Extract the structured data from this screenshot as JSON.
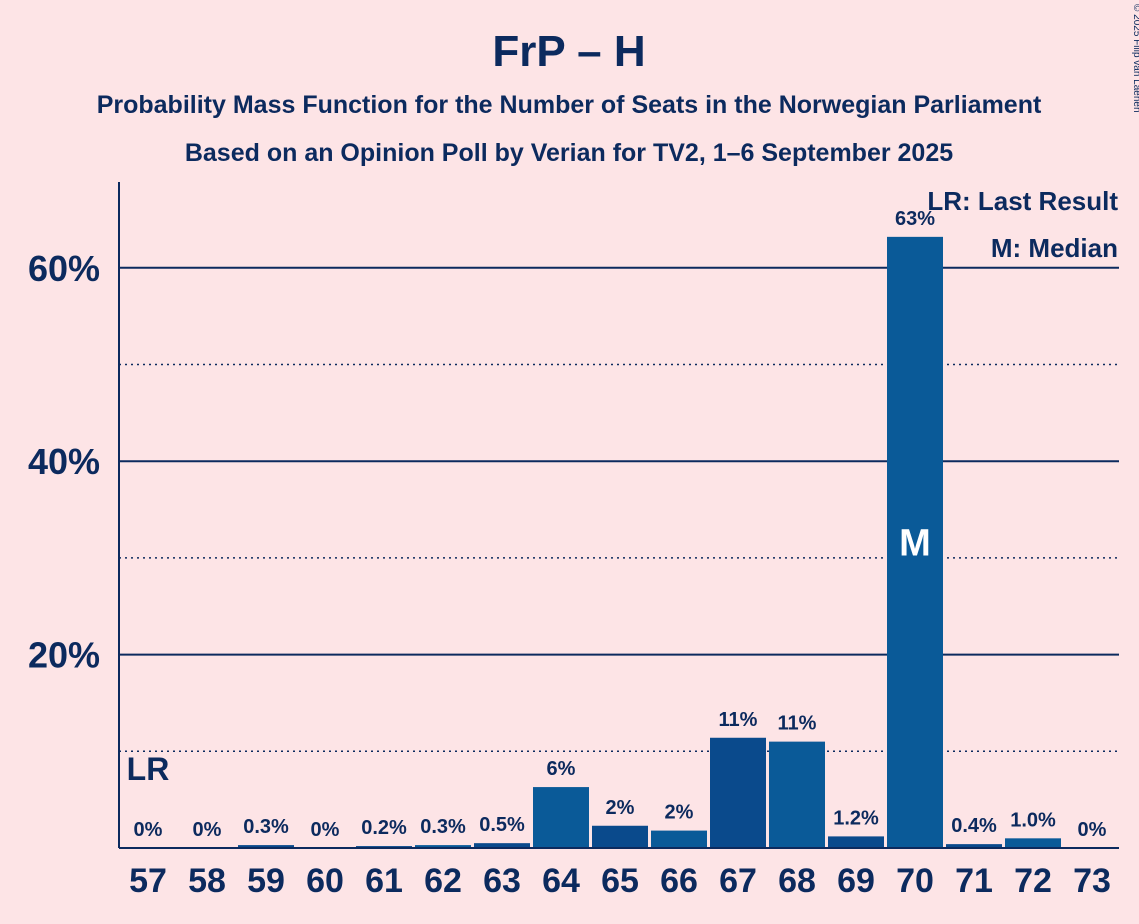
{
  "copyright": "© 2025 Filip van Laenen",
  "chart_data": {
    "type": "bar",
    "title": "FrP – H",
    "subtitle1": "Probability Mass Function for the Number of Seats in the Norwegian Parliament",
    "subtitle2": "Based on an Opinion Poll by Verian for TV2, 1–6 September 2025",
    "categories": [
      "57",
      "58",
      "59",
      "60",
      "61",
      "62",
      "63",
      "64",
      "65",
      "66",
      "67",
      "68",
      "69",
      "70",
      "71",
      "72",
      "73"
    ],
    "values": [
      0,
      0,
      0.3,
      0,
      0.2,
      0.3,
      0.5,
      6.3,
      2.3,
      1.8,
      11.4,
      11.0,
      1.2,
      63.2,
      0.4,
      1.0,
      0
    ],
    "labels": [
      "0%",
      "0%",
      "0.3%",
      "0%",
      "0.2%",
      "0.3%",
      "0.5%",
      "6%",
      "2%",
      "2%",
      "11%",
      "11%",
      "1.2%",
      "63%",
      "0.4%",
      "1.0%",
      "0%"
    ],
    "ylim": [
      0,
      69
    ],
    "yticks": [
      20,
      40,
      60
    ],
    "ytick_labels": [
      "20%",
      "40%",
      "60%"
    ],
    "minor_gridlines": [
      10,
      30,
      50
    ],
    "last_result_index": 0,
    "last_result_label": "LR",
    "median_index": 13,
    "median_label": "M",
    "legend": [
      "LR: Last Result",
      "M: Median"
    ],
    "legend_position": "top-right",
    "colors": {
      "bar": "#0a4a8c",
      "bar_alt": "#0a5a98",
      "axis": "#0c2a5e",
      "background": "#fde4e6"
    }
  }
}
